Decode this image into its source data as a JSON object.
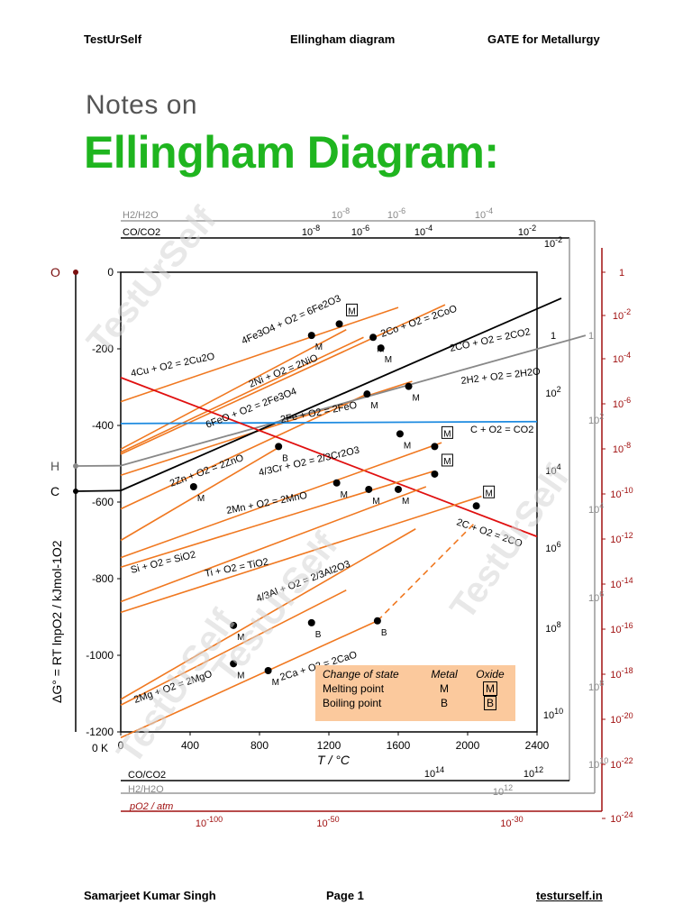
{
  "header": {
    "left": "TestUrSelf",
    "center": "Ellingham diagram",
    "right": "GATE for Metallurgy"
  },
  "subtitle": "Notes on",
  "title": "Ellingham Diagram:",
  "footer": {
    "left": "Samarjeet Kumar Singh",
    "center": "Page 1",
    "right": "testurself.in"
  },
  "watermark": "TestUrSelf",
  "chart_data": {
    "type": "line",
    "xlabel": "T / °C",
    "ylabel": "ΔG° = RT lnpO2 / kJmol-1O2",
    "xlim": [
      0,
      2400
    ],
    "ylim": [
      -1200,
      0
    ],
    "x_ticks": [
      0,
      400,
      800,
      1200,
      1600,
      2000,
      2400
    ],
    "y_ticks": [
      0,
      -200,
      -400,
      -600,
      -800,
      -1000,
      -1200
    ],
    "zero_kelvin_label": "0 K",
    "left_points": [
      "O",
      "H",
      "C"
    ],
    "top_scales": [
      {
        "name": "H2/H2O",
        "ticks": [
          "10-8",
          "10-6",
          "10-4"
        ]
      },
      {
        "name": "CO/CO2",
        "ticks": [
          "10-8",
          "10-6",
          "10-4",
          "10-2"
        ]
      }
    ],
    "bottom_scales": [
      {
        "name": "CO/CO2",
        "ticks": [
          "10^14",
          "10^12"
        ]
      },
      {
        "name": "H2/H2O",
        "ticks": [
          "10^12"
        ]
      },
      {
        "name": "pO2 / atm",
        "ticks": [
          "10^-100",
          "10^-50",
          "10^-30"
        ]
      }
    ],
    "right_scale_co": [
      "10^-2",
      "1",
      "10^2",
      "10^4",
      "10^6",
      "10^8",
      "10^10"
    ],
    "right_scale_h2": [
      "1",
      "10^2",
      "10^4",
      "10^6",
      "10^8",
      "10^10"
    ],
    "right_scale_po2": [
      "1",
      "10^-2",
      "10^-4",
      "10^-6",
      "10^-8",
      "10^-10",
      "10^-12",
      "10^-14",
      "10^-16",
      "10^-18",
      "10^-20",
      "10^-22",
      "10^-24"
    ],
    "series": [
      {
        "name": "4Fe3O4 + O2 = 6Fe2O3",
        "x": [
          0,
          1300
        ],
        "y": [
          -462,
          -150
        ],
        "color": "#f07820"
      },
      {
        "name": "4Cu + O2 = 2Cu2O",
        "x": [
          0,
          1600
        ],
        "y": [
          -338,
          -92
        ],
        "color": "#f07820"
      },
      {
        "name": "2Ni + O2 = 2NiO",
        "x": [
          0,
          1400
        ],
        "y": [
          -470,
          -170
        ],
        "color": "#f07820"
      },
      {
        "name": "2Co + O2 = 2CoO",
        "x": [
          0,
          1870
        ],
        "y": [
          -475,
          -85
        ],
        "color": "#f07820"
      },
      {
        "name": "6FeO + O2 = 2Fe3O4",
        "x": [
          0,
          1420
        ],
        "y": [
          -618,
          -318
        ],
        "color": "#f07820"
      },
      {
        "name": "2Fe + O2 = 2FeO",
        "x": [
          0,
          1680
        ],
        "y": [
          -530,
          -285
        ],
        "color": "#f07820"
      },
      {
        "name": "2CO + O2 = 2CO2",
        "x": [
          0,
          2540
        ],
        "y": [
          -570,
          -68
        ],
        "color": "#000000"
      },
      {
        "name": "2H2 + O2 = 2H2O",
        "x": [
          0,
          2680
        ],
        "y": [
          -505,
          -165
        ],
        "color": "#888888"
      },
      {
        "name": "C + O2 = CO2",
        "x": [
          0,
          2400
        ],
        "y": [
          -395,
          -390
        ],
        "color": "#1e8be0"
      },
      {
        "name": "2C + O2 = 2CO",
        "x": [
          0,
          2400
        ],
        "y": [
          -275,
          -690
        ],
        "color": "#e01010"
      },
      {
        "name": "2Zn + O2 = 2ZnO",
        "x": [
          0,
          920
        ],
        "y": [
          -700,
          -455
        ],
        "color": "#f07820"
      },
      {
        "name": "4/3Cr + O2 = 2/3Cr2O3",
        "x": [
          0,
          1850
        ],
        "y": [
          -745,
          -445
        ],
        "color": "#f07820"
      },
      {
        "name": "2Mn + O2 = 2MnO",
        "x": [
          0,
          1800
        ],
        "y": [
          -770,
          -520
        ],
        "color": "#f07820"
      },
      {
        "name": "Si + O2 = SiO2",
        "x": [
          0,
          1760
        ],
        "y": [
          -860,
          -560
        ],
        "color": "#f07820"
      },
      {
        "name": "Ti + O2 = TiO2",
        "x": [
          0,
          2080
        ],
        "y": [
          -888,
          -585
        ],
        "color": "#f07820"
      },
      {
        "name": "4/3Al + O2 = 2/3Al2O3",
        "x": [
          0,
          1700
        ],
        "y": [
          -1115,
          -670
        ],
        "color": "#f07820"
      },
      {
        "name": "2Mg + O2 = 2MgO",
        "x": [
          0,
          1300
        ],
        "y": [
          -1130,
          -830
        ],
        "color": "#f07820"
      },
      {
        "name": "2Ca + O2 = 2CaO",
        "x": [
          0,
          1480
        ],
        "y": [
          -1215,
          -910
        ],
        "color": "#f07820"
      },
      {
        "name": "2Ca + O2 = 2CaO (dashed)",
        "x": [
          1480,
          2040
        ],
        "y": [
          -910,
          -655
        ],
        "color": "#f07820"
      }
    ],
    "points": [
      {
        "x": 1100,
        "y": -165,
        "label": "M"
      },
      {
        "x": 1260,
        "y": -135,
        "label": "M",
        "boxed": true
      },
      {
        "x": 1455,
        "y": -170,
        "label": "M"
      },
      {
        "x": 1500,
        "y": -198,
        "label": "M"
      },
      {
        "x": 1420,
        "y": -318,
        "label": "M"
      },
      {
        "x": 1660,
        "y": -298,
        "label": "M"
      },
      {
        "x": 1610,
        "y": -422,
        "label": "M"
      },
      {
        "x": 1810,
        "y": -455,
        "label": "M",
        "boxed": true
      },
      {
        "x": 910,
        "y": -455,
        "label": "B"
      },
      {
        "x": 420,
        "y": -560,
        "label": "M"
      },
      {
        "x": 1245,
        "y": -550,
        "label": "M"
      },
      {
        "x": 1430,
        "y": -567,
        "label": "M"
      },
      {
        "x": 1600,
        "y": -567,
        "label": "M"
      },
      {
        "x": 1810,
        "y": -527,
        "label": "M",
        "boxed": true
      },
      {
        "x": 2050,
        "y": -610,
        "label": "M",
        "boxed": true
      },
      {
        "x": 650,
        "y": -922,
        "label": "M"
      },
      {
        "x": 1100,
        "y": -915,
        "label": "B"
      },
      {
        "x": 1480,
        "y": -910,
        "label": "B"
      },
      {
        "x": 650,
        "y": -1022,
        "label": "M"
      },
      {
        "x": 850,
        "y": -1040,
        "label": "M"
      }
    ],
    "legend": {
      "title": "Change of state",
      "col_metal": "Metal",
      "col_oxide": "Oxide",
      "rows": [
        {
          "label": "Melting point",
          "metal": "M",
          "oxide": "M"
        },
        {
          "label": "Boiling point",
          "metal": "B",
          "oxide": "B"
        }
      ],
      "placement": "bottom-right"
    }
  }
}
